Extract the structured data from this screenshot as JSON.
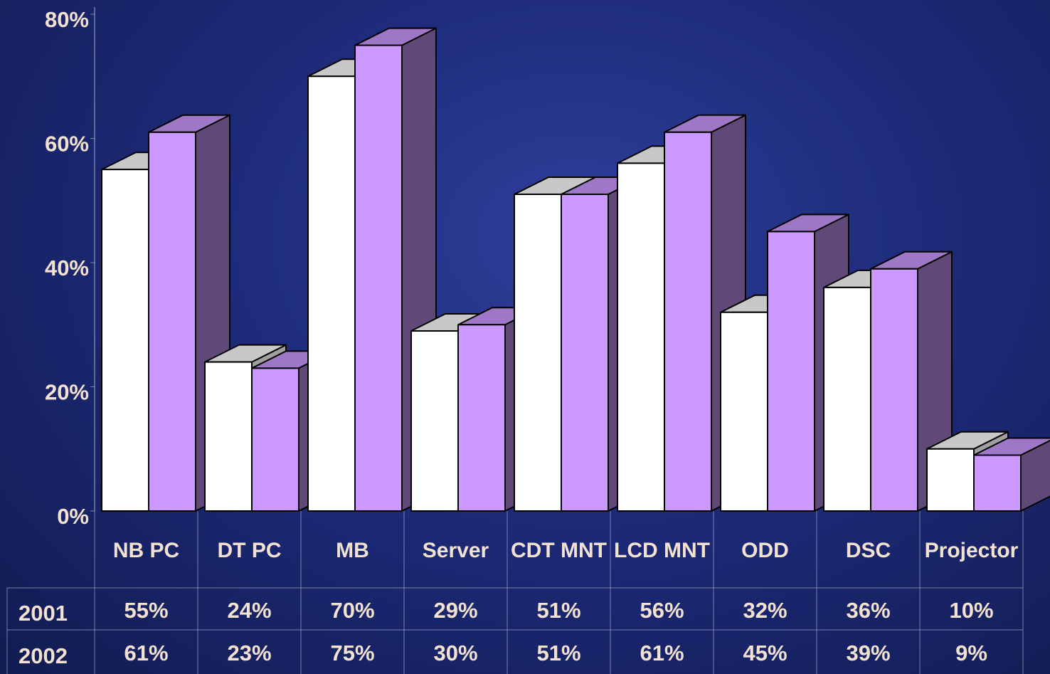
{
  "chart_data": {
    "type": "bar3d",
    "categories": [
      "NB PC",
      "DT PC",
      "MB",
      "Server",
      "CDT MNT",
      "LCD MNT",
      "ODD",
      "DSC",
      "Projector"
    ],
    "series": [
      {
        "name": "2001",
        "color": "#ffffff",
        "values": [
          55,
          24,
          70,
          29,
          51,
          56,
          32,
          36,
          10
        ],
        "value_labels": [
          "55%",
          "24%",
          "70%",
          "29%",
          "51%",
          "56%",
          "32%",
          "36%",
          "10%"
        ]
      },
      {
        "name": "2002",
        "color": "#cc99ff",
        "values": [
          61,
          23,
          75,
          30,
          51,
          61,
          45,
          39,
          9
        ],
        "value_labels": [
          "61%",
          "23%",
          "75%",
          "30%",
          "51%",
          "61%",
          "45%",
          "39%",
          "9%"
        ]
      }
    ],
    "ylim": [
      0,
      80
    ],
    "yticks": [
      {
        "value": 0,
        "label": "0%"
      },
      {
        "value": 20,
        "label": "20%"
      },
      {
        "value": 40,
        "label": "40%"
      },
      {
        "value": 60,
        "label": "60%"
      },
      {
        "value": 80,
        "label": "80%"
      }
    ]
  }
}
